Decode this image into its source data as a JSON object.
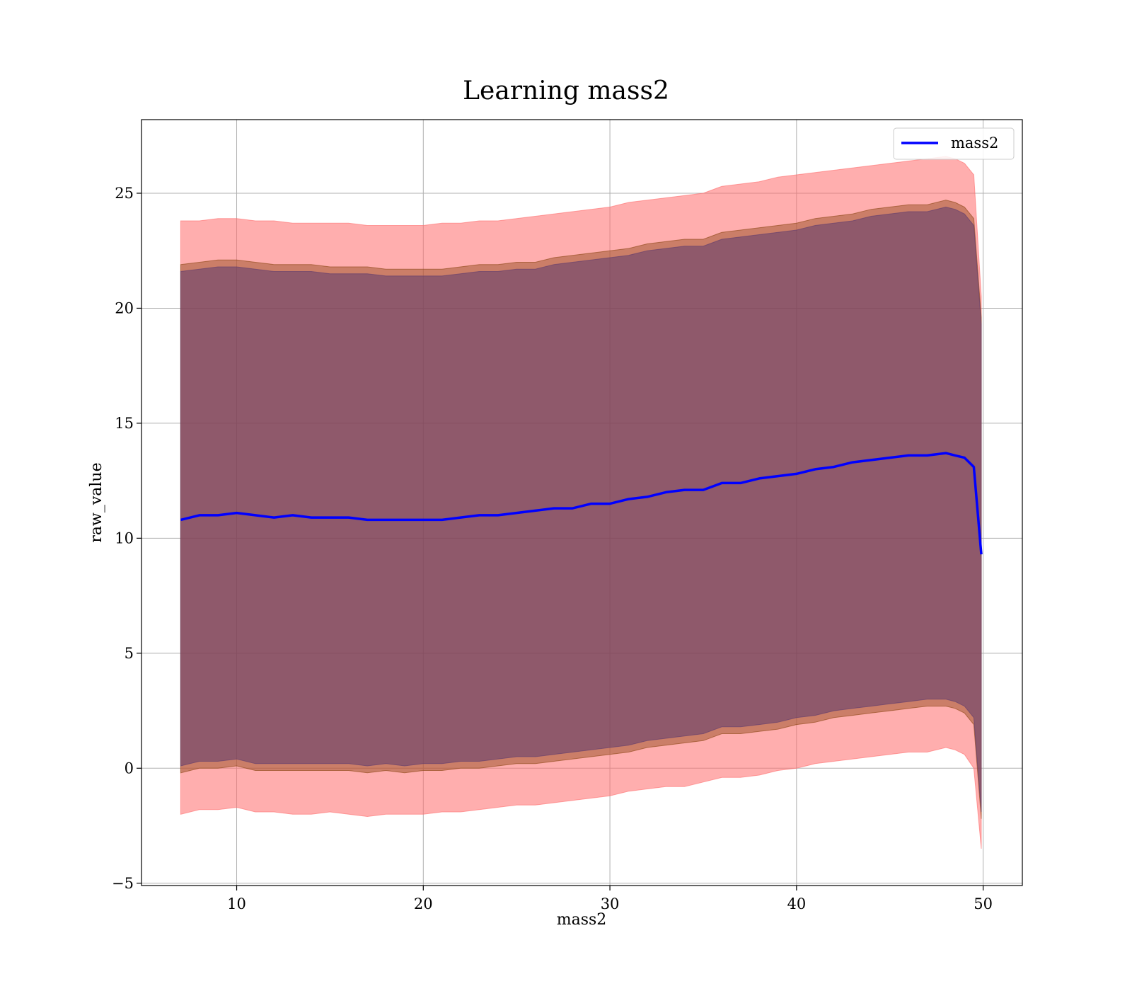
{
  "chart_data": {
    "type": "area",
    "title": "Learning mass2",
    "xlabel": "mass2",
    "ylabel": "raw_value",
    "xlim": [
      4.9,
      52.1
    ],
    "ylim": [
      -5.1,
      28.2
    ],
    "xticks": [
      10,
      20,
      30,
      40,
      50
    ],
    "yticks": [
      -5,
      0,
      5,
      10,
      15,
      20,
      25
    ],
    "ytick_labels": [
      "−5",
      "0",
      "5",
      "10",
      "15",
      "20",
      "25"
    ],
    "grid": true,
    "legend": {
      "position": "top-right",
      "entries": [
        "mass2"
      ]
    },
    "series": [
      {
        "name": "mass2",
        "role": "line",
        "color": "#0000ff",
        "x": [
          7,
          8,
          9,
          10,
          11,
          12,
          13,
          14,
          15,
          16,
          17,
          18,
          19,
          20,
          21,
          22,
          23,
          24,
          25,
          26,
          27,
          28,
          29,
          30,
          31,
          32,
          33,
          34,
          35,
          36,
          37,
          38,
          39,
          40,
          41,
          42,
          43,
          44,
          45,
          46,
          47,
          48,
          48.5,
          49,
          49.5,
          49.9
        ],
        "y": [
          10.8,
          11.0,
          11.0,
          11.1,
          11.0,
          10.9,
          11.0,
          10.9,
          10.9,
          10.9,
          10.8,
          10.8,
          10.8,
          10.8,
          10.8,
          10.9,
          11.0,
          11.0,
          11.1,
          11.2,
          11.3,
          11.3,
          11.5,
          11.5,
          11.7,
          11.8,
          12.0,
          12.1,
          12.1,
          12.4,
          12.4,
          12.6,
          12.7,
          12.8,
          13.0,
          13.1,
          13.3,
          13.4,
          13.5,
          13.6,
          13.6,
          13.7,
          13.6,
          13.5,
          13.1,
          9.3
        ]
      }
    ],
    "bands": [
      {
        "color": "#ff6b6b",
        "opacity": 0.55,
        "x": [
          7,
          8,
          9,
          10,
          11,
          12,
          13,
          14,
          15,
          16,
          17,
          18,
          19,
          20,
          21,
          22,
          23,
          24,
          25,
          26,
          27,
          28,
          29,
          30,
          31,
          32,
          33,
          34,
          35,
          36,
          37,
          38,
          39,
          40,
          41,
          42,
          43,
          44,
          45,
          46,
          47,
          48,
          48.5,
          49,
          49.5,
          49.9
        ],
        "upper": [
          23.8,
          23.8,
          23.9,
          23.9,
          23.8,
          23.8,
          23.7,
          23.7,
          23.7,
          23.7,
          23.6,
          23.6,
          23.6,
          23.6,
          23.7,
          23.7,
          23.8,
          23.8,
          23.9,
          24.0,
          24.1,
          24.2,
          24.3,
          24.4,
          24.6,
          24.7,
          24.8,
          24.9,
          25.0,
          25.3,
          25.4,
          25.5,
          25.7,
          25.8,
          25.9,
          26.0,
          26.1,
          26.2,
          26.3,
          26.4,
          26.5,
          26.6,
          26.5,
          26.3,
          25.8,
          20.5
        ],
        "lower": [
          -2.0,
          -1.8,
          -1.8,
          -1.7,
          -1.9,
          -1.9,
          -2.0,
          -2.0,
          -1.9,
          -2.0,
          -2.1,
          -2.0,
          -2.0,
          -2.0,
          -1.9,
          -1.9,
          -1.8,
          -1.7,
          -1.6,
          -1.6,
          -1.5,
          -1.4,
          -1.3,
          -1.2,
          -1.0,
          -0.9,
          -0.8,
          -0.8,
          -0.6,
          -0.4,
          -0.4,
          -0.3,
          -0.1,
          0.0,
          0.2,
          0.3,
          0.4,
          0.5,
          0.6,
          0.7,
          0.7,
          0.9,
          0.8,
          0.6,
          0.0,
          -3.5
        ]
      },
      {
        "color": "#8b4513",
        "opacity": 0.45,
        "x": [
          7,
          8,
          9,
          10,
          11,
          12,
          13,
          14,
          15,
          16,
          17,
          18,
          19,
          20,
          21,
          22,
          23,
          24,
          25,
          26,
          27,
          28,
          29,
          30,
          31,
          32,
          33,
          34,
          35,
          36,
          37,
          38,
          39,
          40,
          41,
          42,
          43,
          44,
          45,
          46,
          47,
          48,
          48.5,
          49,
          49.5,
          49.9
        ],
        "upper": [
          21.9,
          22.0,
          22.1,
          22.1,
          22.0,
          21.9,
          21.9,
          21.9,
          21.8,
          21.8,
          21.8,
          21.7,
          21.7,
          21.7,
          21.7,
          21.8,
          21.9,
          21.9,
          22.0,
          22.0,
          22.2,
          22.3,
          22.4,
          22.5,
          22.6,
          22.8,
          22.9,
          23.0,
          23.0,
          23.3,
          23.4,
          23.5,
          23.6,
          23.7,
          23.9,
          24.0,
          24.1,
          24.3,
          24.4,
          24.5,
          24.5,
          24.7,
          24.6,
          24.4,
          23.9,
          19.6
        ],
        "lower": [
          -0.2,
          0.0,
          0.0,
          0.1,
          -0.1,
          -0.1,
          -0.1,
          -0.1,
          -0.1,
          -0.1,
          -0.2,
          -0.1,
          -0.2,
          -0.1,
          -0.1,
          0.0,
          0.0,
          0.1,
          0.2,
          0.2,
          0.3,
          0.4,
          0.5,
          0.6,
          0.7,
          0.9,
          1.0,
          1.1,
          1.2,
          1.5,
          1.5,
          1.6,
          1.7,
          1.9,
          2.0,
          2.2,
          2.3,
          2.4,
          2.5,
          2.6,
          2.7,
          2.7,
          2.6,
          2.4,
          1.9,
          -2.2
        ]
      },
      {
        "color": "#5e3a6e",
        "opacity": 0.55,
        "x": [
          7,
          8,
          9,
          10,
          11,
          12,
          13,
          14,
          15,
          16,
          17,
          18,
          19,
          20,
          21,
          22,
          23,
          24,
          25,
          26,
          27,
          28,
          29,
          30,
          31,
          32,
          33,
          34,
          35,
          36,
          37,
          38,
          39,
          40,
          41,
          42,
          43,
          44,
          45,
          46,
          47,
          48,
          48.5,
          49,
          49.5,
          49.9
        ],
        "upper": [
          21.6,
          21.7,
          21.8,
          21.8,
          21.7,
          21.6,
          21.6,
          21.6,
          21.5,
          21.5,
          21.5,
          21.4,
          21.4,
          21.4,
          21.4,
          21.5,
          21.6,
          21.6,
          21.7,
          21.7,
          21.9,
          22.0,
          22.1,
          22.2,
          22.3,
          22.5,
          22.6,
          22.7,
          22.7,
          23.0,
          23.1,
          23.2,
          23.3,
          23.4,
          23.6,
          23.7,
          23.8,
          24.0,
          24.1,
          24.2,
          24.2,
          24.4,
          24.3,
          24.1,
          23.6,
          19.3
        ],
        "lower": [
          0.1,
          0.3,
          0.3,
          0.4,
          0.2,
          0.2,
          0.2,
          0.2,
          0.2,
          0.2,
          0.1,
          0.2,
          0.1,
          0.2,
          0.2,
          0.3,
          0.3,
          0.4,
          0.5,
          0.5,
          0.6,
          0.7,
          0.8,
          0.9,
          1.0,
          1.2,
          1.3,
          1.4,
          1.5,
          1.8,
          1.8,
          1.9,
          2.0,
          2.2,
          2.3,
          2.5,
          2.6,
          2.7,
          2.8,
          2.9,
          3.0,
          3.0,
          2.9,
          2.7,
          2.2,
          -1.9
        ]
      }
    ]
  }
}
